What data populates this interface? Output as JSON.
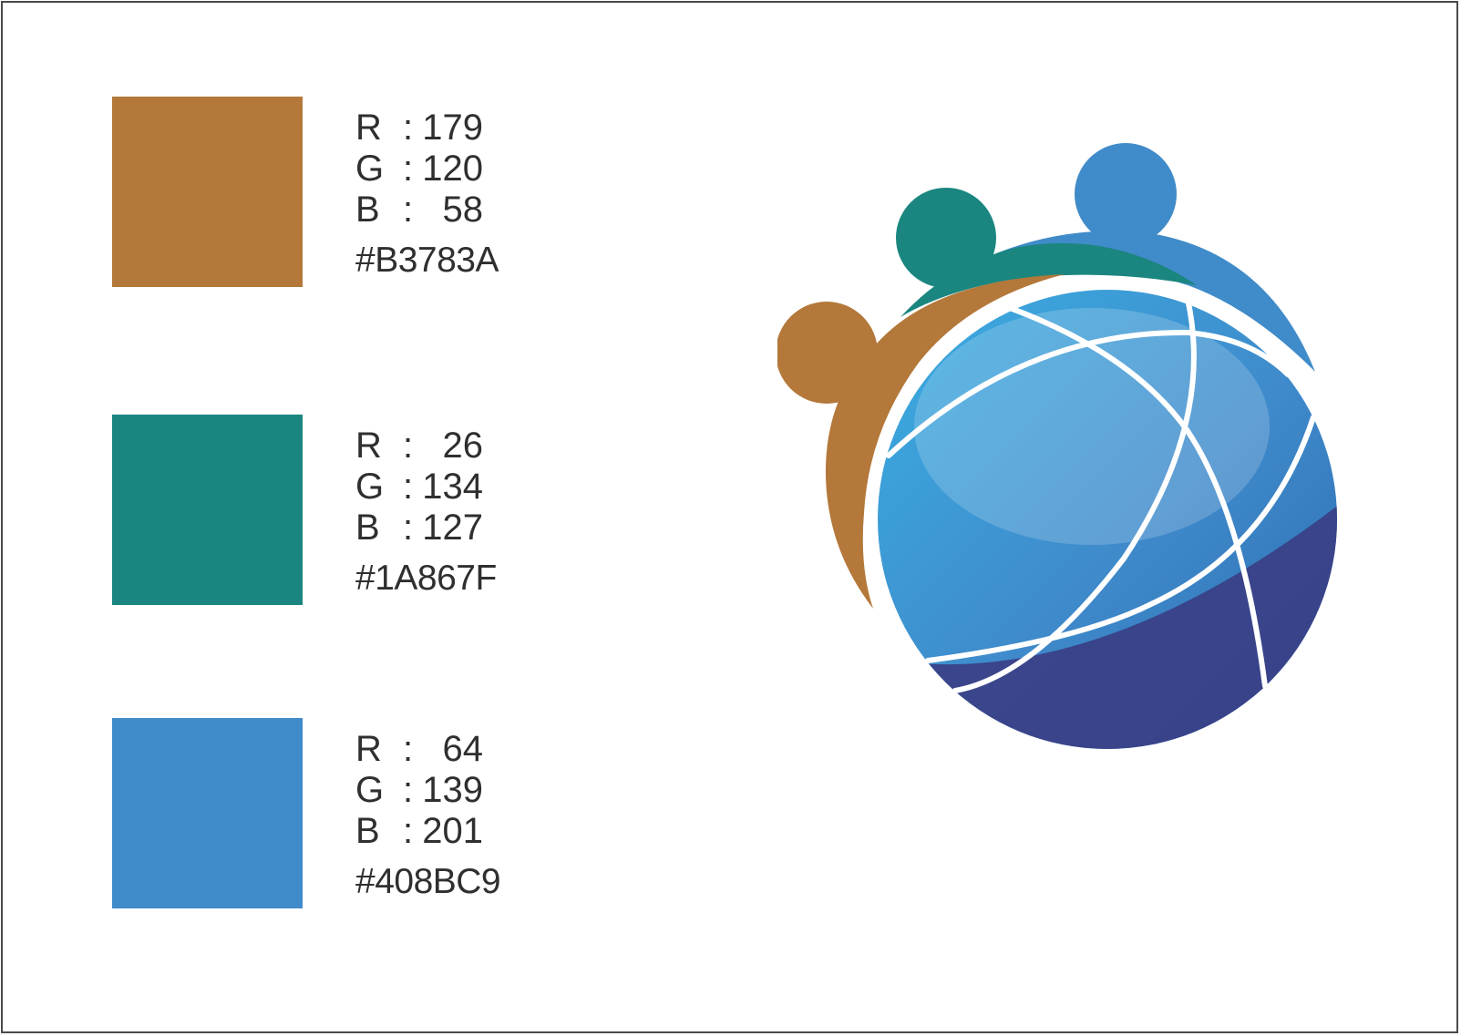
{
  "palette": [
    {
      "swatch_color": "#B3783A",
      "rgb": [
        {
          "channel": "R",
          "value": "179"
        },
        {
          "channel": "G",
          "value": "120"
        },
        {
          "channel": "B",
          "value": "58"
        }
      ],
      "hex": "#B3783A"
    },
    {
      "swatch_color": "#1A867F",
      "rgb": [
        {
          "channel": "R",
          "value": "26"
        },
        {
          "channel": "G",
          "value": "134"
        },
        {
          "channel": "B",
          "value": "127"
        }
      ],
      "hex": "#1A867F"
    },
    {
      "swatch_color": "#408BC9",
      "rgb": [
        {
          "channel": "R",
          "value": "64"
        },
        {
          "channel": "G",
          "value": "139"
        },
        {
          "channel": "B",
          "value": "201"
        }
      ],
      "hex": "#408BC9"
    }
  ],
  "rgb_separator": ":",
  "logo": {
    "colors": {
      "brown_figure": "#B3783A",
      "teal_figure": "#1A867F",
      "blue_figure": "#408BC9",
      "globe_light": "#3AAEE2",
      "globe_mid": "#3F8ACB",
      "globe_deep": "#2A6BAE",
      "globe_dark": "#3A3F85",
      "meridian": "#FFFFFF"
    }
  }
}
